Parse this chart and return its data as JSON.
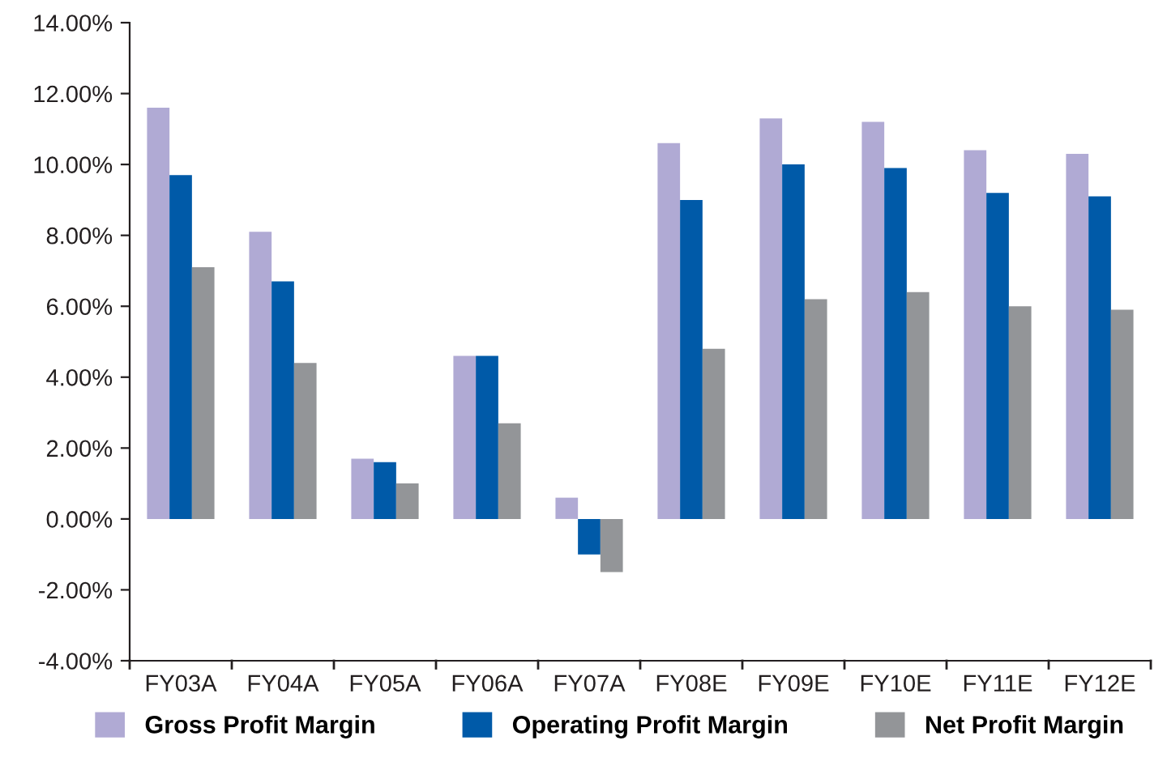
{
  "chart_data": {
    "type": "bar",
    "categories": [
      "FY03A",
      "FY04A",
      "FY05A",
      "FY06A",
      "FY07A",
      "FY08E",
      "FY09E",
      "FY10E",
      "FY11E",
      "FY12E"
    ],
    "series": [
      {
        "name": "Gross Profit Margin",
        "color": "#b0aad4",
        "values": [
          11.6,
          8.1,
          1.7,
          4.6,
          0.6,
          10.6,
          11.3,
          11.2,
          10.4,
          10.3
        ]
      },
      {
        "name": "Operating Profit Margin",
        "color": "#005aa8",
        "values": [
          9.7,
          6.7,
          1.6,
          4.6,
          -1.0,
          9.0,
          10.0,
          9.9,
          9.2,
          9.1
        ]
      },
      {
        "name": "Net Profit Margin",
        "color": "#939598",
        "values": [
          7.1,
          4.4,
          1.0,
          2.7,
          -1.5,
          4.8,
          6.2,
          6.4,
          6.0,
          5.9
        ]
      }
    ],
    "ylim": [
      -4,
      14
    ],
    "yticks": [
      {
        "value": -4,
        "label": "-4.00%"
      },
      {
        "value": -2,
        "label": "-2.00%"
      },
      {
        "value": 0,
        "label": "0.00%"
      },
      {
        "value": 2,
        "label": "2.00%"
      },
      {
        "value": 4,
        "label": "4.00%"
      },
      {
        "value": 6,
        "label": "6.00%"
      },
      {
        "value": 8,
        "label": "8.00%"
      },
      {
        "value": 10,
        "label": "10.00%"
      },
      {
        "value": 12,
        "label": "12.00%"
      },
      {
        "value": 14,
        "label": "14.00%"
      }
    ],
    "grid": false,
    "legend": "bottom"
  }
}
